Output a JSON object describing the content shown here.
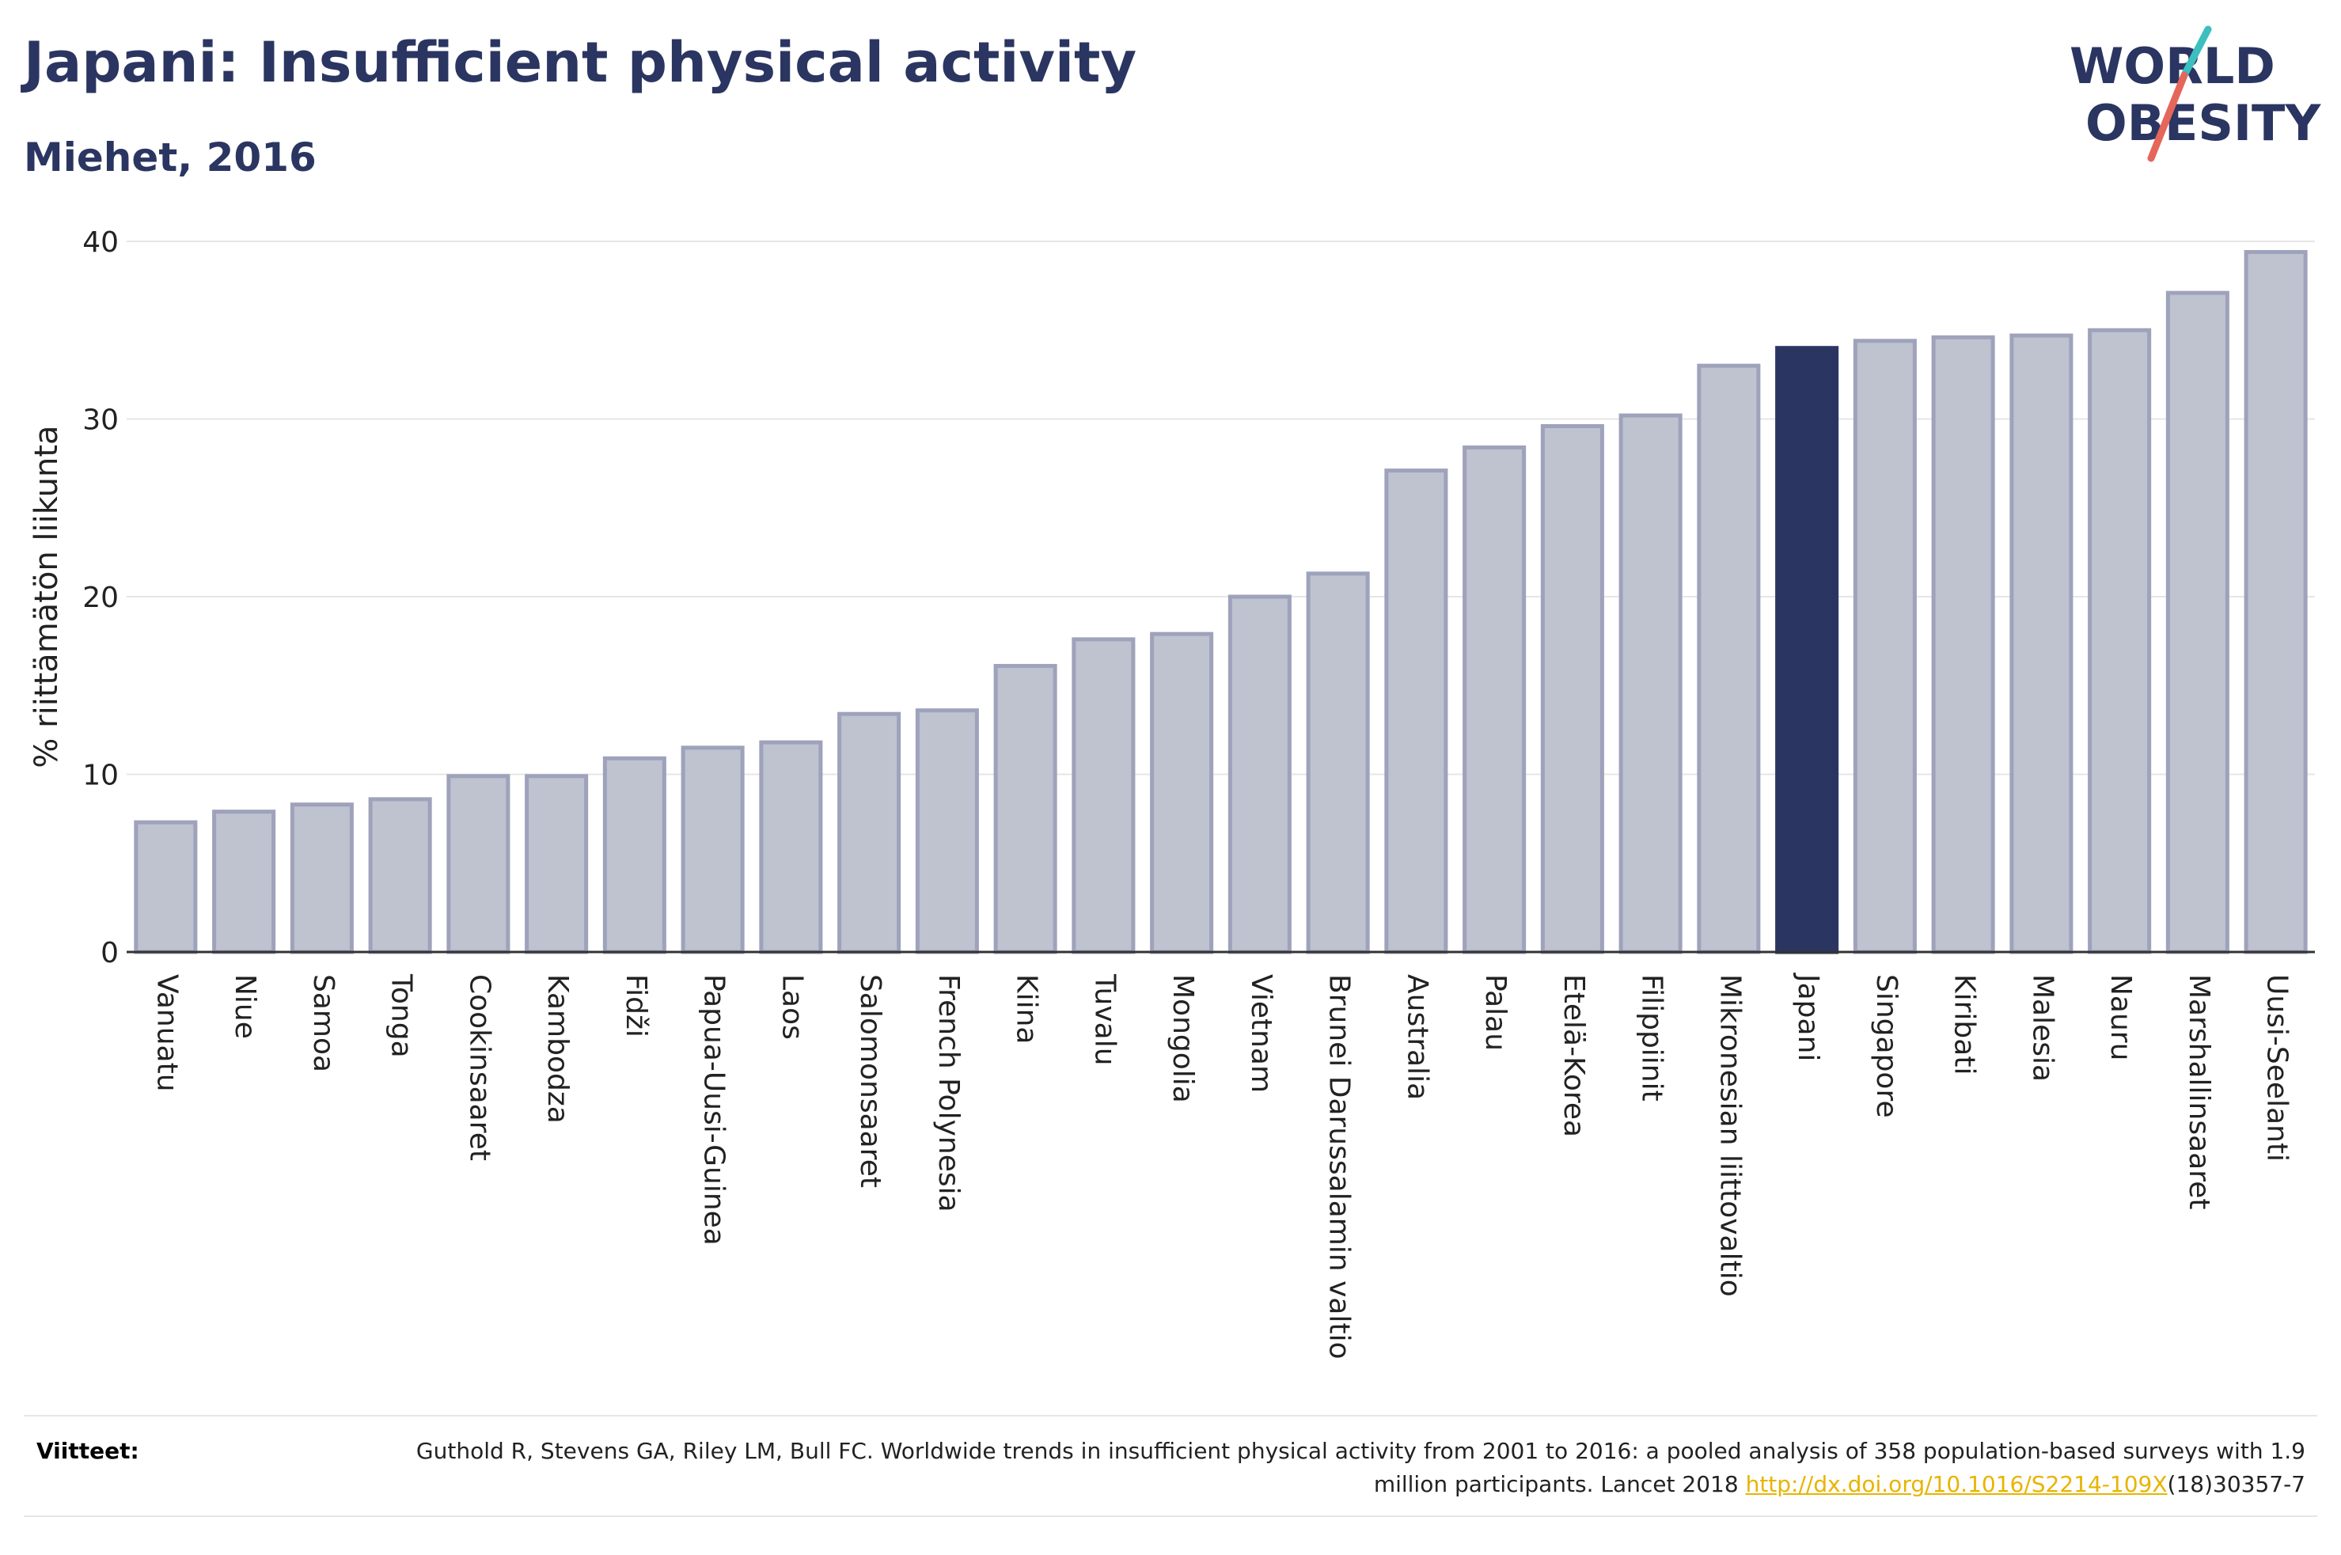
{
  "header": {
    "title": "Japani: Insufficient physical activity",
    "subtitle": "Miehet, 2016"
  },
  "logo": {
    "line1": "WORLD",
    "line2": "OBESITY",
    "colors": {
      "text": "#2b3561",
      "slash_red": "#e5665a",
      "slash_teal": "#3cbfbf"
    }
  },
  "chart_data": {
    "type": "bar",
    "ylabel": "% riittämätön liikunta",
    "xlabel": "",
    "ylim": [
      0,
      40
    ],
    "yticks": [
      0,
      10,
      20,
      30,
      40
    ],
    "grid": true,
    "highlight": "Japani",
    "colors": {
      "bar": "#bfc2cf",
      "bar_edge": "#9ea2bb",
      "highlight": "#2b3561"
    },
    "categories": [
      "Vanuatu",
      "Niue",
      "Samoa",
      "Tonga",
      "Cookinsaaret",
      "Kambodza",
      "Fidži",
      "Papua-Uusi-Guinea",
      "Laos",
      "Salomonsaaret",
      "French Polynesia",
      "Kiina",
      "Tuvalu",
      "Mongolia",
      "Vietnam",
      "Brunei Darussalamin valtio",
      "Australia",
      "Palau",
      "Etelä-Korea",
      "Filippiinit",
      "Mikronesian liittovaltio",
      "Japani",
      "Singapore",
      "Kiribati",
      "Malesia",
      "Nauru",
      "Marshallinsaaret",
      "Uusi-Seelanti"
    ],
    "values": [
      7.3,
      7.9,
      8.3,
      8.6,
      9.9,
      9.9,
      10.9,
      11.5,
      11.8,
      13.4,
      13.6,
      16.1,
      17.6,
      17.9,
      20.0,
      21.3,
      27.1,
      28.4,
      29.6,
      30.2,
      33.0,
      34.0,
      34.4,
      34.6,
      34.7,
      35.0,
      37.1,
      39.4
    ]
  },
  "footer": {
    "label": "Viitteet:",
    "text_before_link": "Guthold R, Stevens GA, Riley LM, Bull FC. Worldwide trends in insufficient physical activity from 2001 to 2016: a pooled analysis of 358 population-based surveys with 1.9 million participants. Lancet 2018 ",
    "link": "http://dx.doi.org/10.1016/S2214-109X",
    "text_after_link": "(18)30357-7"
  }
}
